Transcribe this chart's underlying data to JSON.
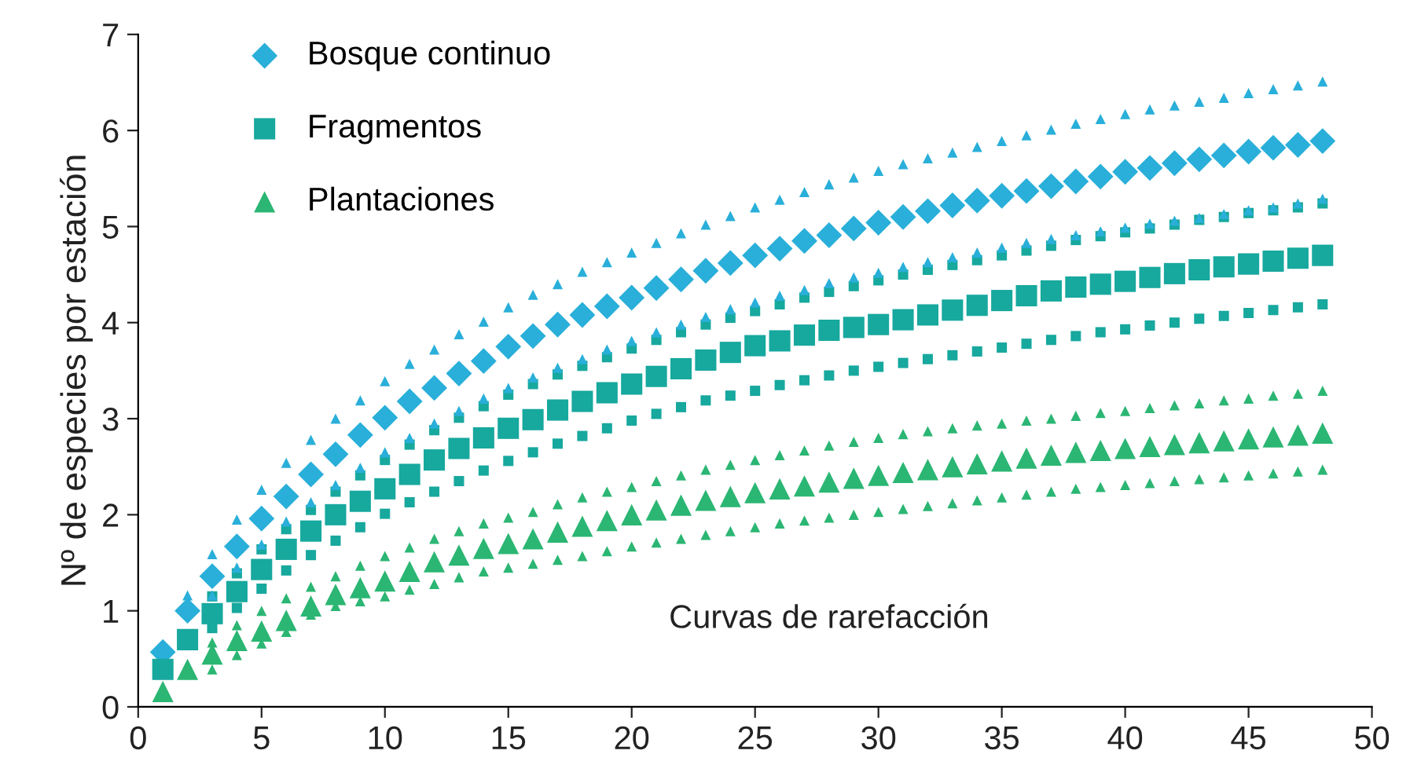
{
  "chart_data": {
    "type": "scatter",
    "ylabel": "Nº de especies por estación",
    "annotations": [
      "Curvas de rarefacción"
    ],
    "x": [
      1,
      2,
      3,
      4,
      5,
      6,
      7,
      8,
      9,
      10,
      11,
      12,
      13,
      14,
      15,
      16,
      17,
      18,
      19,
      20,
      21,
      22,
      23,
      24,
      25,
      26,
      27,
      28,
      29,
      30,
      31,
      32,
      33,
      34,
      35,
      36,
      37,
      38,
      39,
      40,
      41,
      42,
      43,
      44,
      45,
      46,
      47,
      48
    ],
    "xlim": [
      0,
      50
    ],
    "xticks": [
      0,
      5,
      10,
      15,
      20,
      25,
      30,
      35,
      40,
      45,
      50
    ],
    "ylim": [
      0,
      7
    ],
    "yticks": [
      0,
      1,
      2,
      3,
      4,
      5,
      6,
      7
    ],
    "grid": false,
    "legend": "top left",
    "series": [
      {
        "name": "Bosque continuo",
        "color": "#29afd9",
        "marker": "diamond",
        "values": [
          0.57,
          1.0,
          1.36,
          1.67,
          1.96,
          2.19,
          2.42,
          2.63,
          2.83,
          3.01,
          3.18,
          3.32,
          3.47,
          3.6,
          3.75,
          3.86,
          3.98,
          4.08,
          4.17,
          4.26,
          4.36,
          4.45,
          4.54,
          4.62,
          4.7,
          4.77,
          4.85,
          4.91,
          4.98,
          5.04,
          5.1,
          5.16,
          5.22,
          5.27,
          5.32,
          5.37,
          5.42,
          5.47,
          5.52,
          5.57,
          5.61,
          5.66,
          5.7,
          5.74,
          5.78,
          5.82,
          5.85,
          5.89
        ]
      },
      {
        "name": "Fragmentos",
        "color": "#17a89e",
        "marker": "square",
        "values": [
          0.39,
          0.7,
          0.97,
          1.2,
          1.43,
          1.64,
          1.83,
          2.0,
          2.14,
          2.27,
          2.42,
          2.57,
          2.69,
          2.8,
          2.9,
          2.99,
          3.09,
          3.18,
          3.27,
          3.36,
          3.44,
          3.52,
          3.61,
          3.69,
          3.76,
          3.81,
          3.87,
          3.92,
          3.95,
          3.98,
          4.03,
          4.08,
          4.13,
          4.18,
          4.23,
          4.28,
          4.33,
          4.37,
          4.4,
          4.43,
          4.47,
          4.51,
          4.55,
          4.58,
          4.61,
          4.64,
          4.67,
          4.7
        ]
      },
      {
        "name": "Plantaciones",
        "color": "#2bb673",
        "marker": "triangle",
        "values": [
          0.16,
          0.39,
          0.55,
          0.69,
          0.79,
          0.9,
          1.05,
          1.17,
          1.24,
          1.31,
          1.41,
          1.51,
          1.58,
          1.65,
          1.7,
          1.75,
          1.82,
          1.88,
          1.94,
          2.0,
          2.05,
          2.1,
          2.15,
          2.19,
          2.23,
          2.27,
          2.3,
          2.34,
          2.38,
          2.41,
          2.44,
          2.47,
          2.5,
          2.53,
          2.56,
          2.59,
          2.62,
          2.65,
          2.67,
          2.69,
          2.71,
          2.73,
          2.75,
          2.77,
          2.79,
          2.81,
          2.83,
          2.85
        ]
      },
      {
        "color": "#29afd9",
        "marker": "triangle",
        "values": [
          null,
          1.16,
          1.59,
          1.95,
          2.26,
          2.54,
          2.78,
          3.0,
          3.19,
          3.39,
          3.57,
          3.72,
          3.88,
          4.01,
          4.16,
          4.29,
          4.4,
          4.53,
          4.63,
          4.73,
          4.83,
          4.93,
          5.02,
          5.11,
          5.2,
          5.28,
          5.36,
          5.44,
          5.51,
          5.58,
          5.65,
          5.71,
          5.77,
          5.83,
          5.89,
          5.95,
          6.01,
          6.07,
          6.12,
          6.17,
          6.22,
          6.26,
          6.3,
          6.34,
          6.39,
          6.43,
          6.47,
          6.51
        ]
      },
      {
        "color": "#29afd9",
        "marker": "triangle",
        "values": [
          null,
          null,
          1.16,
          1.45,
          1.69,
          1.93,
          2.13,
          2.31,
          2.49,
          2.65,
          2.8,
          2.95,
          3.08,
          3.21,
          3.32,
          3.43,
          3.53,
          3.62,
          3.72,
          3.81,
          3.9,
          3.98,
          4.06,
          4.14,
          4.21,
          4.28,
          4.34,
          4.41,
          4.47,
          4.52,
          4.58,
          4.63,
          4.68,
          4.73,
          4.78,
          4.83,
          4.87,
          4.91,
          4.95,
          4.99,
          5.03,
          5.06,
          5.09,
          5.13,
          5.17,
          5.2,
          5.24,
          5.29
        ]
      },
      {
        "color": "#17a89e",
        "marker": "square",
        "values": [
          null,
          null,
          1.15,
          1.39,
          1.64,
          1.85,
          2.05,
          2.24,
          2.41,
          2.57,
          2.73,
          2.88,
          3.01,
          3.13,
          3.25,
          3.36,
          3.46,
          3.55,
          3.64,
          3.73,
          3.82,
          3.9,
          3.98,
          4.05,
          4.12,
          4.19,
          4.26,
          4.32,
          4.38,
          4.44,
          4.5,
          4.55,
          4.6,
          4.65,
          4.7,
          4.75,
          4.8,
          4.86,
          4.9,
          4.94,
          4.98,
          5.02,
          5.07,
          5.1,
          5.14,
          5.17,
          5.2,
          5.24
        ]
      },
      {
        "color": "#17a89e",
        "marker": "square",
        "values": [
          null,
          null,
          0.82,
          1.03,
          1.23,
          1.42,
          1.58,
          1.73,
          1.87,
          2.01,
          2.13,
          2.24,
          2.35,
          2.46,
          2.56,
          2.65,
          2.74,
          2.82,
          2.9,
          2.98,
          3.05,
          3.12,
          3.19,
          3.24,
          3.29,
          3.35,
          3.4,
          3.45,
          3.5,
          3.54,
          3.58,
          3.62,
          3.66,
          3.7,
          3.74,
          3.78,
          3.82,
          3.86,
          3.9,
          3.93,
          3.97,
          4.0,
          4.04,
          4.07,
          4.1,
          4.13,
          4.16,
          4.19
        ]
      },
      {
        "color": "#2bb673",
        "marker": "triangle",
        "values": [
          null,
          null,
          0.67,
          0.85,
          1.0,
          1.13,
          1.25,
          1.36,
          1.47,
          1.57,
          1.66,
          1.75,
          1.83,
          1.91,
          1.97,
          2.03,
          2.11,
          2.18,
          2.24,
          2.29,
          2.35,
          2.41,
          2.47,
          2.52,
          2.57,
          2.62,
          2.67,
          2.72,
          2.76,
          2.8,
          2.84,
          2.87,
          2.9,
          2.93,
          2.95,
          2.98,
          3.0,
          3.03,
          3.06,
          3.08,
          3.11,
          3.14,
          3.16,
          3.19,
          3.21,
          3.24,
          3.26,
          3.29
        ]
      },
      {
        "color": "#2bb673",
        "marker": "triangle",
        "values": [
          null,
          null,
          0.39,
          0.54,
          0.66,
          0.78,
          0.96,
          1.05,
          1.1,
          1.15,
          1.22,
          1.28,
          1.35,
          1.41,
          1.45,
          1.49,
          1.53,
          1.57,
          1.62,
          1.67,
          1.71,
          1.75,
          1.79,
          1.83,
          1.87,
          1.91,
          1.94,
          1.97,
          2.0,
          2.03,
          2.06,
          2.09,
          2.12,
          2.15,
          2.18,
          2.21,
          2.24,
          2.27,
          2.29,
          2.31,
          2.33,
          2.35,
          2.37,
          2.39,
          2.41,
          2.43,
          2.45,
          2.47
        ]
      }
    ]
  }
}
